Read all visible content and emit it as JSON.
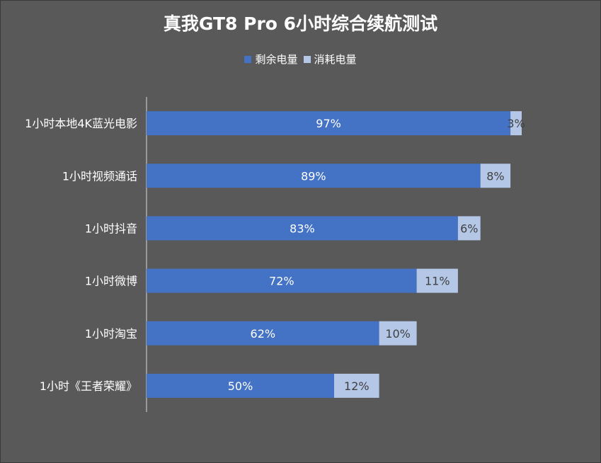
{
  "colors": {
    "background": "#595959",
    "remaining": "#4472c4",
    "consumed": "#b4c7e7",
    "axis": "#d9d9d9"
  },
  "chart_data": {
    "type": "bar",
    "orientation": "horizontal",
    "stacked": true,
    "title": "真我GT8 Pro 6小时综合续航测试",
    "categories": [
      "1小时本地4K蓝光电影",
      "1小时视频通话",
      "1小时抖音",
      "1小时微博",
      "1小时淘宝",
      "1小时《王者荣耀》"
    ],
    "series": [
      {
        "name": "剩余电量",
        "values": [
          97,
          89,
          83,
          72,
          62,
          50
        ],
        "labels": [
          "97%",
          "89%",
          "83%",
          "72%",
          "62%",
          "50%"
        ]
      },
      {
        "name": "消耗电量",
        "values": [
          3,
          8,
          6,
          11,
          10,
          12
        ],
        "labels": [
          "3%",
          "8%",
          "6%",
          "11%",
          "10%",
          "12%"
        ]
      }
    ],
    "xlim": [
      0,
      120
    ],
    "legend": "top",
    "grid": false
  }
}
